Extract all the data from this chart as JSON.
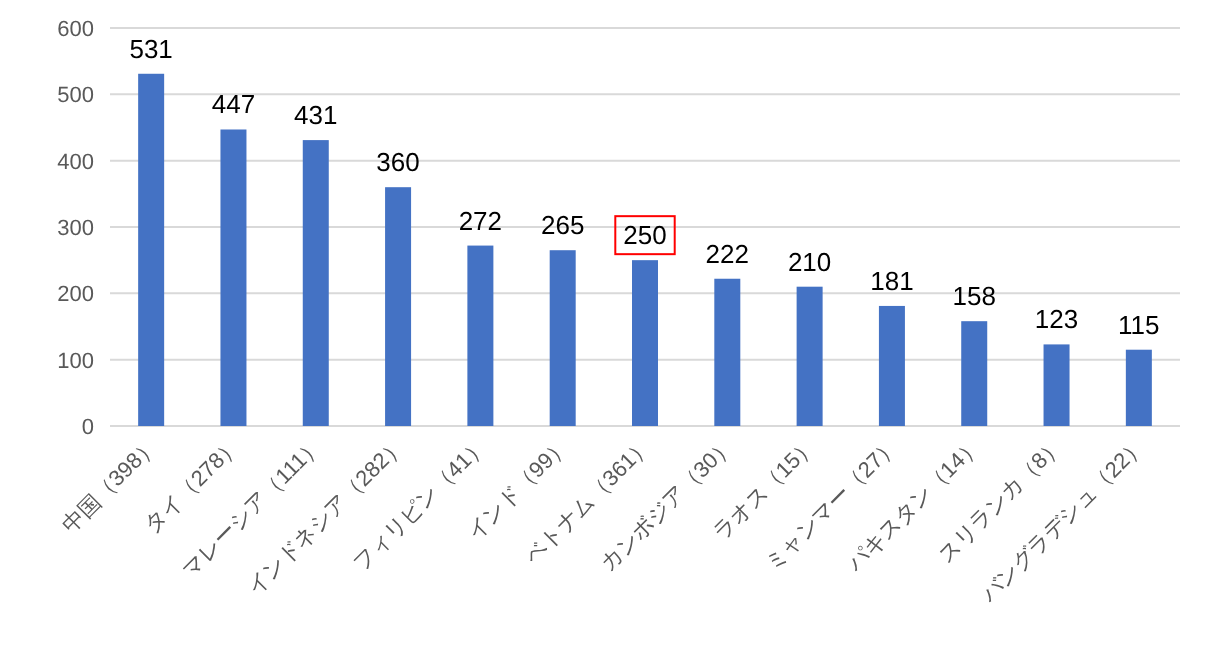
{
  "chart_data": {
    "type": "bar",
    "categories": [
      "中国（398）",
      "タイ（278）",
      "マレーシア（111）",
      "インドネシア（282）",
      "フィリピン（41）",
      "インド（99）",
      "ベトナム（361）",
      "カンボジア（30）",
      "ラオス（15）",
      "ミャンマー（27）",
      "パキスタン（14）",
      "スリランカ（8）",
      "バングラデシュ（22）"
    ],
    "series": [
      {
        "color": "#4472c4",
        "values": [
          531,
          447,
          431,
          360,
          272,
          265,
          250,
          222,
          210,
          181,
          158,
          123,
          115
        ]
      }
    ],
    "ylim": [
      0,
      600
    ],
    "yticks": [
      0,
      100,
      200,
      300,
      400,
      500,
      600
    ],
    "grid": "y",
    "data_labels": true
  }
}
